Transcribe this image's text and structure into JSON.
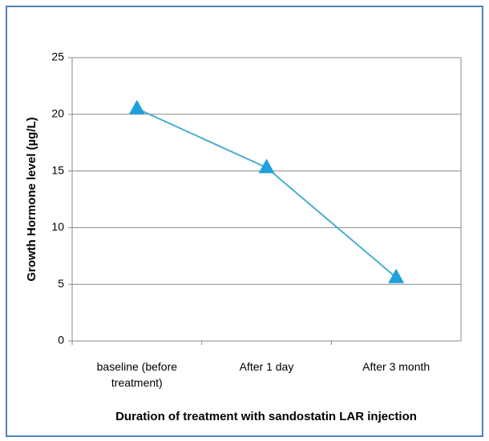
{
  "chart_data": {
    "type": "line",
    "x_label": "Duration of treatment with sandostatin LAR injection",
    "y_label": "Growth Hormone level (µg/L)",
    "categories": [
      "baseline (before treatment)",
      "After 1 day",
      "After 3 month"
    ],
    "series": [
      {
        "name": "Growth Hormone level",
        "color": "#4aaed0",
        "marker_color": "#1ea0dc",
        "values": [
          20.5,
          15.3,
          5.6
        ]
      }
    ],
    "ylim": [
      0,
      25
    ],
    "yticks": [
      0,
      5,
      10,
      15,
      20,
      25
    ],
    "grid": true
  }
}
